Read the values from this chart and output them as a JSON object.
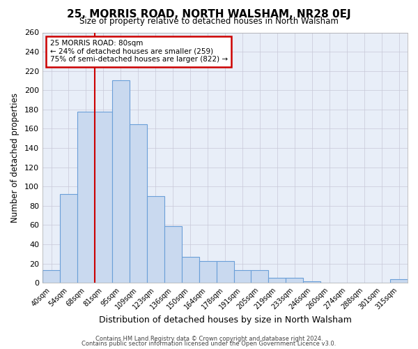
{
  "title": "25, MORRIS ROAD, NORTH WALSHAM, NR28 0EJ",
  "subtitle": "Size of property relative to detached houses in North Walsham",
  "xlabel": "Distribution of detached houses by size in North Walsham",
  "ylabel": "Number of detached properties",
  "bin_labels": [
    "40sqm",
    "54sqm",
    "68sqm",
    "81sqm",
    "95sqm",
    "109sqm",
    "123sqm",
    "136sqm",
    "150sqm",
    "164sqm",
    "178sqm",
    "191sqm",
    "205sqm",
    "219sqm",
    "233sqm",
    "246sqm",
    "260sqm",
    "274sqm",
    "288sqm",
    "301sqm",
    "315sqm"
  ],
  "bar_heights": [
    13,
    92,
    178,
    178,
    210,
    165,
    90,
    59,
    27,
    23,
    23,
    13,
    13,
    5,
    5,
    2,
    0,
    0,
    0,
    0,
    4
  ],
  "bar_color": "#c9d9ef",
  "bar_edge_color": "#6a9fd8",
  "bar_linewidth": 0.8,
  "vline_x_index": 3,
  "vline_color": "#cc0000",
  "vline_linewidth": 1.5,
  "annotation_title": "25 MORRIS ROAD: 80sqm",
  "annotation_line1": "← 24% of detached houses are smaller (259)",
  "annotation_line2": "75% of semi-detached houses are larger (822) →",
  "annotation_box_color": "#ffffff",
  "annotation_box_edge_color": "#cc0000",
  "ylim": [
    0,
    260
  ],
  "yticks": [
    0,
    20,
    40,
    60,
    80,
    100,
    120,
    140,
    160,
    180,
    200,
    220,
    240,
    260
  ],
  "footnote1": "Contains HM Land Registry data © Crown copyright and database right 2024.",
  "footnote2": "Contains public sector information licensed under the Open Government Licence v3.0.",
  "background_color": "#ffffff",
  "plot_bg_color": "#e8eef8",
  "grid_color": "#c8c8d8"
}
